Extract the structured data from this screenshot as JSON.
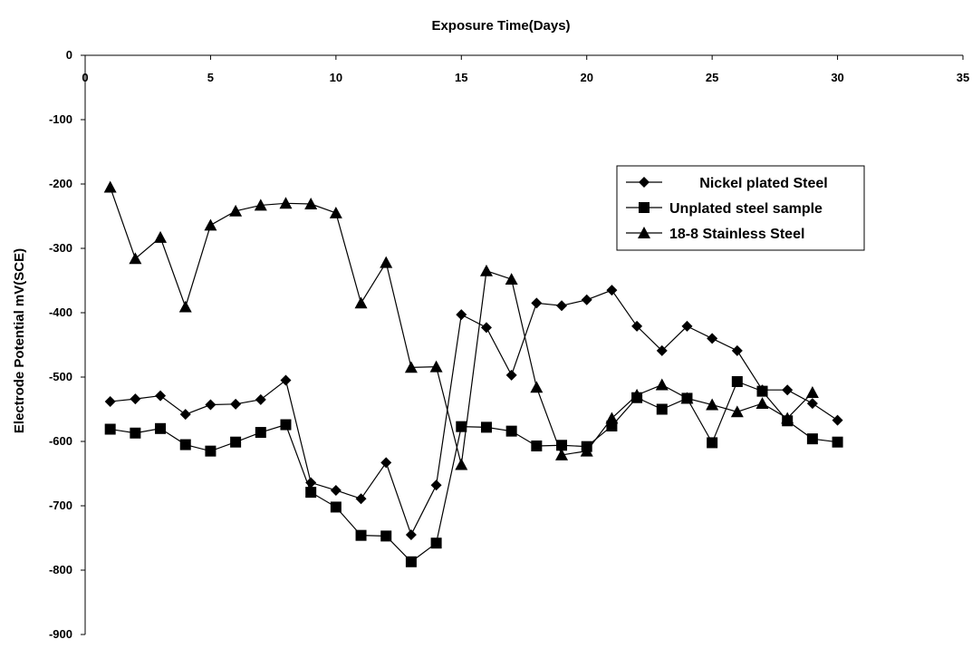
{
  "chart_data": {
    "type": "line",
    "title": "",
    "xlabel": "Exposure Time(Days)",
    "ylabel": "Electrode Potential mV(SCE)",
    "xlim": [
      0,
      35
    ],
    "ylim": [
      -900,
      0
    ],
    "x_ticks": [
      0,
      5,
      10,
      15,
      20,
      25,
      30,
      35
    ],
    "y_ticks": [
      0,
      -100,
      -200,
      -300,
      -400,
      -500,
      -600,
      -700,
      -800,
      -900
    ],
    "grid": false,
    "legend_position": "top-right",
    "x_axis_position": "top",
    "series": [
      {
        "name": "Nickel plated Steel",
        "marker": "diamond",
        "x": [
          1,
          2,
          3,
          4,
          5,
          6,
          7,
          8,
          9,
          10,
          11,
          12,
          13,
          14,
          15,
          16,
          17,
          18,
          19,
          20,
          21,
          22,
          23,
          24,
          25,
          26,
          27,
          28,
          29,
          30
        ],
        "y": [
          -538,
          -534,
          -529,
          -558,
          -543,
          -542,
          -535,
          -505,
          -664,
          -676,
          -689,
          -633,
          -745,
          -668,
          -403,
          -423,
          -497,
          -385,
          -389,
          -380,
          -365,
          -421,
          -459,
          -421,
          -440,
          -459,
          -520,
          -520,
          -541,
          -567
        ]
      },
      {
        "name": "Unplated steel sample",
        "marker": "square",
        "x": [
          1,
          2,
          3,
          4,
          5,
          6,
          7,
          8,
          9,
          10,
          11,
          12,
          13,
          14,
          15,
          16,
          17,
          18,
          19,
          20,
          21,
          22,
          23,
          24,
          25,
          26,
          27,
          28,
          29,
          30
        ],
        "y": [
          -581,
          -587,
          -580,
          -605,
          -615,
          -601,
          -586,
          -574,
          -679,
          -702,
          -746,
          -747,
          -787,
          -758,
          -577,
          -578,
          -584,
          -607,
          -606,
          -608,
          -576,
          -532,
          -550,
          -533,
          -602,
          -507,
          -522,
          -568,
          -596,
          -601
        ]
      },
      {
        "name": "18-8 Stainless Steel",
        "marker": "triangle",
        "x": [
          1,
          2,
          3,
          4,
          5,
          6,
          7,
          8,
          9,
          10,
          11,
          12,
          13,
          14,
          15,
          16,
          17,
          18,
          19,
          20,
          21,
          22,
          23,
          24,
          25,
          26,
          27,
          28,
          29
        ],
        "y": [
          -205,
          -316,
          -283,
          -391,
          -264,
          -242,
          -233,
          -230,
          -231,
          -245,
          -385,
          -322,
          -485,
          -484,
          -636,
          -335,
          -348,
          -516,
          -621,
          -615,
          -564,
          -528,
          -512,
          -533,
          -543,
          -554,
          -541,
          -564,
          -524
        ]
      }
    ]
  }
}
